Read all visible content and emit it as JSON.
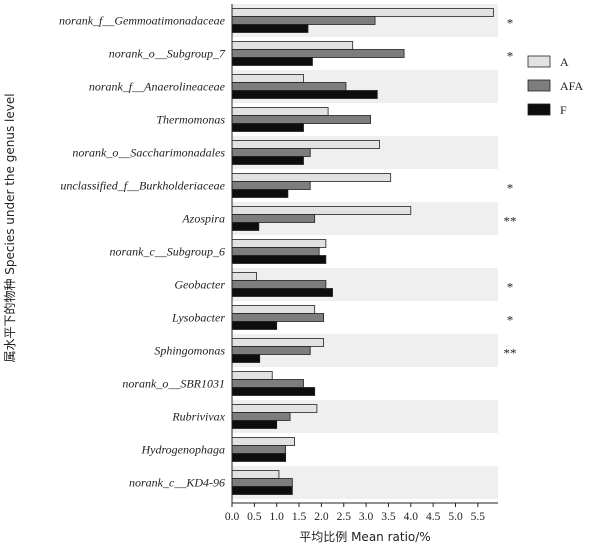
{
  "chart_data": {
    "type": "bar",
    "orientation": "horizontal",
    "ylabel": "属水平下的物种 Species under the genus level",
    "xlabel": "平均比例 Mean ratio/%",
    "xlim": [
      0,
      6.0
    ],
    "xticks": [
      "0.0",
      "0.5",
      "1.0",
      "1.5",
      "2.0",
      "2.5",
      "3.0",
      "3.5",
      "4.0",
      "4.5",
      "5.0",
      "5.5"
    ],
    "categories": [
      "norank_f__Gemmoatimonadaceae",
      "norank_o__Subgroup_7",
      "norank_f__Anaerolineaceae",
      "Thermomonas",
      "norank_o__Saccharimonadales",
      "unclassified_f__Burkholderiaceae",
      "Azospira",
      "norank_c__Subgroup_6",
      "Geobacter",
      "Lysobacter",
      "Sphingomonas",
      "norank_o__SBR1031",
      "Rubrivivax",
      "Hydrogenophaga",
      "norank_c__KD4-96"
    ],
    "significance": [
      "*",
      "*",
      "",
      "",
      "",
      "*",
      "**",
      "",
      "*",
      "*",
      "**",
      "",
      "",
      "",
      ""
    ],
    "series": [
      {
        "name": "A",
        "color": "#e2e2e2",
        "values": [
          5.85,
          2.7,
          1.6,
          2.15,
          3.3,
          3.55,
          4.0,
          2.1,
          0.55,
          1.85,
          2.05,
          0.9,
          1.9,
          1.4,
          1.05
        ]
      },
      {
        "name": "AFA",
        "color": "#7d7d7d",
        "values": [
          3.2,
          3.85,
          2.55,
          3.1,
          1.75,
          1.75,
          1.85,
          1.95,
          2.1,
          2.05,
          1.75,
          1.6,
          1.3,
          1.2,
          1.35
        ]
      },
      {
        "name": "F",
        "color": "#0d0d0d",
        "values": [
          1.7,
          1.8,
          3.25,
          1.6,
          1.6,
          1.25,
          0.6,
          2.1,
          2.25,
          1.0,
          0.62,
          1.85,
          1.0,
          1.2,
          1.35
        ]
      }
    ],
    "grid": false,
    "legend": "right"
  }
}
